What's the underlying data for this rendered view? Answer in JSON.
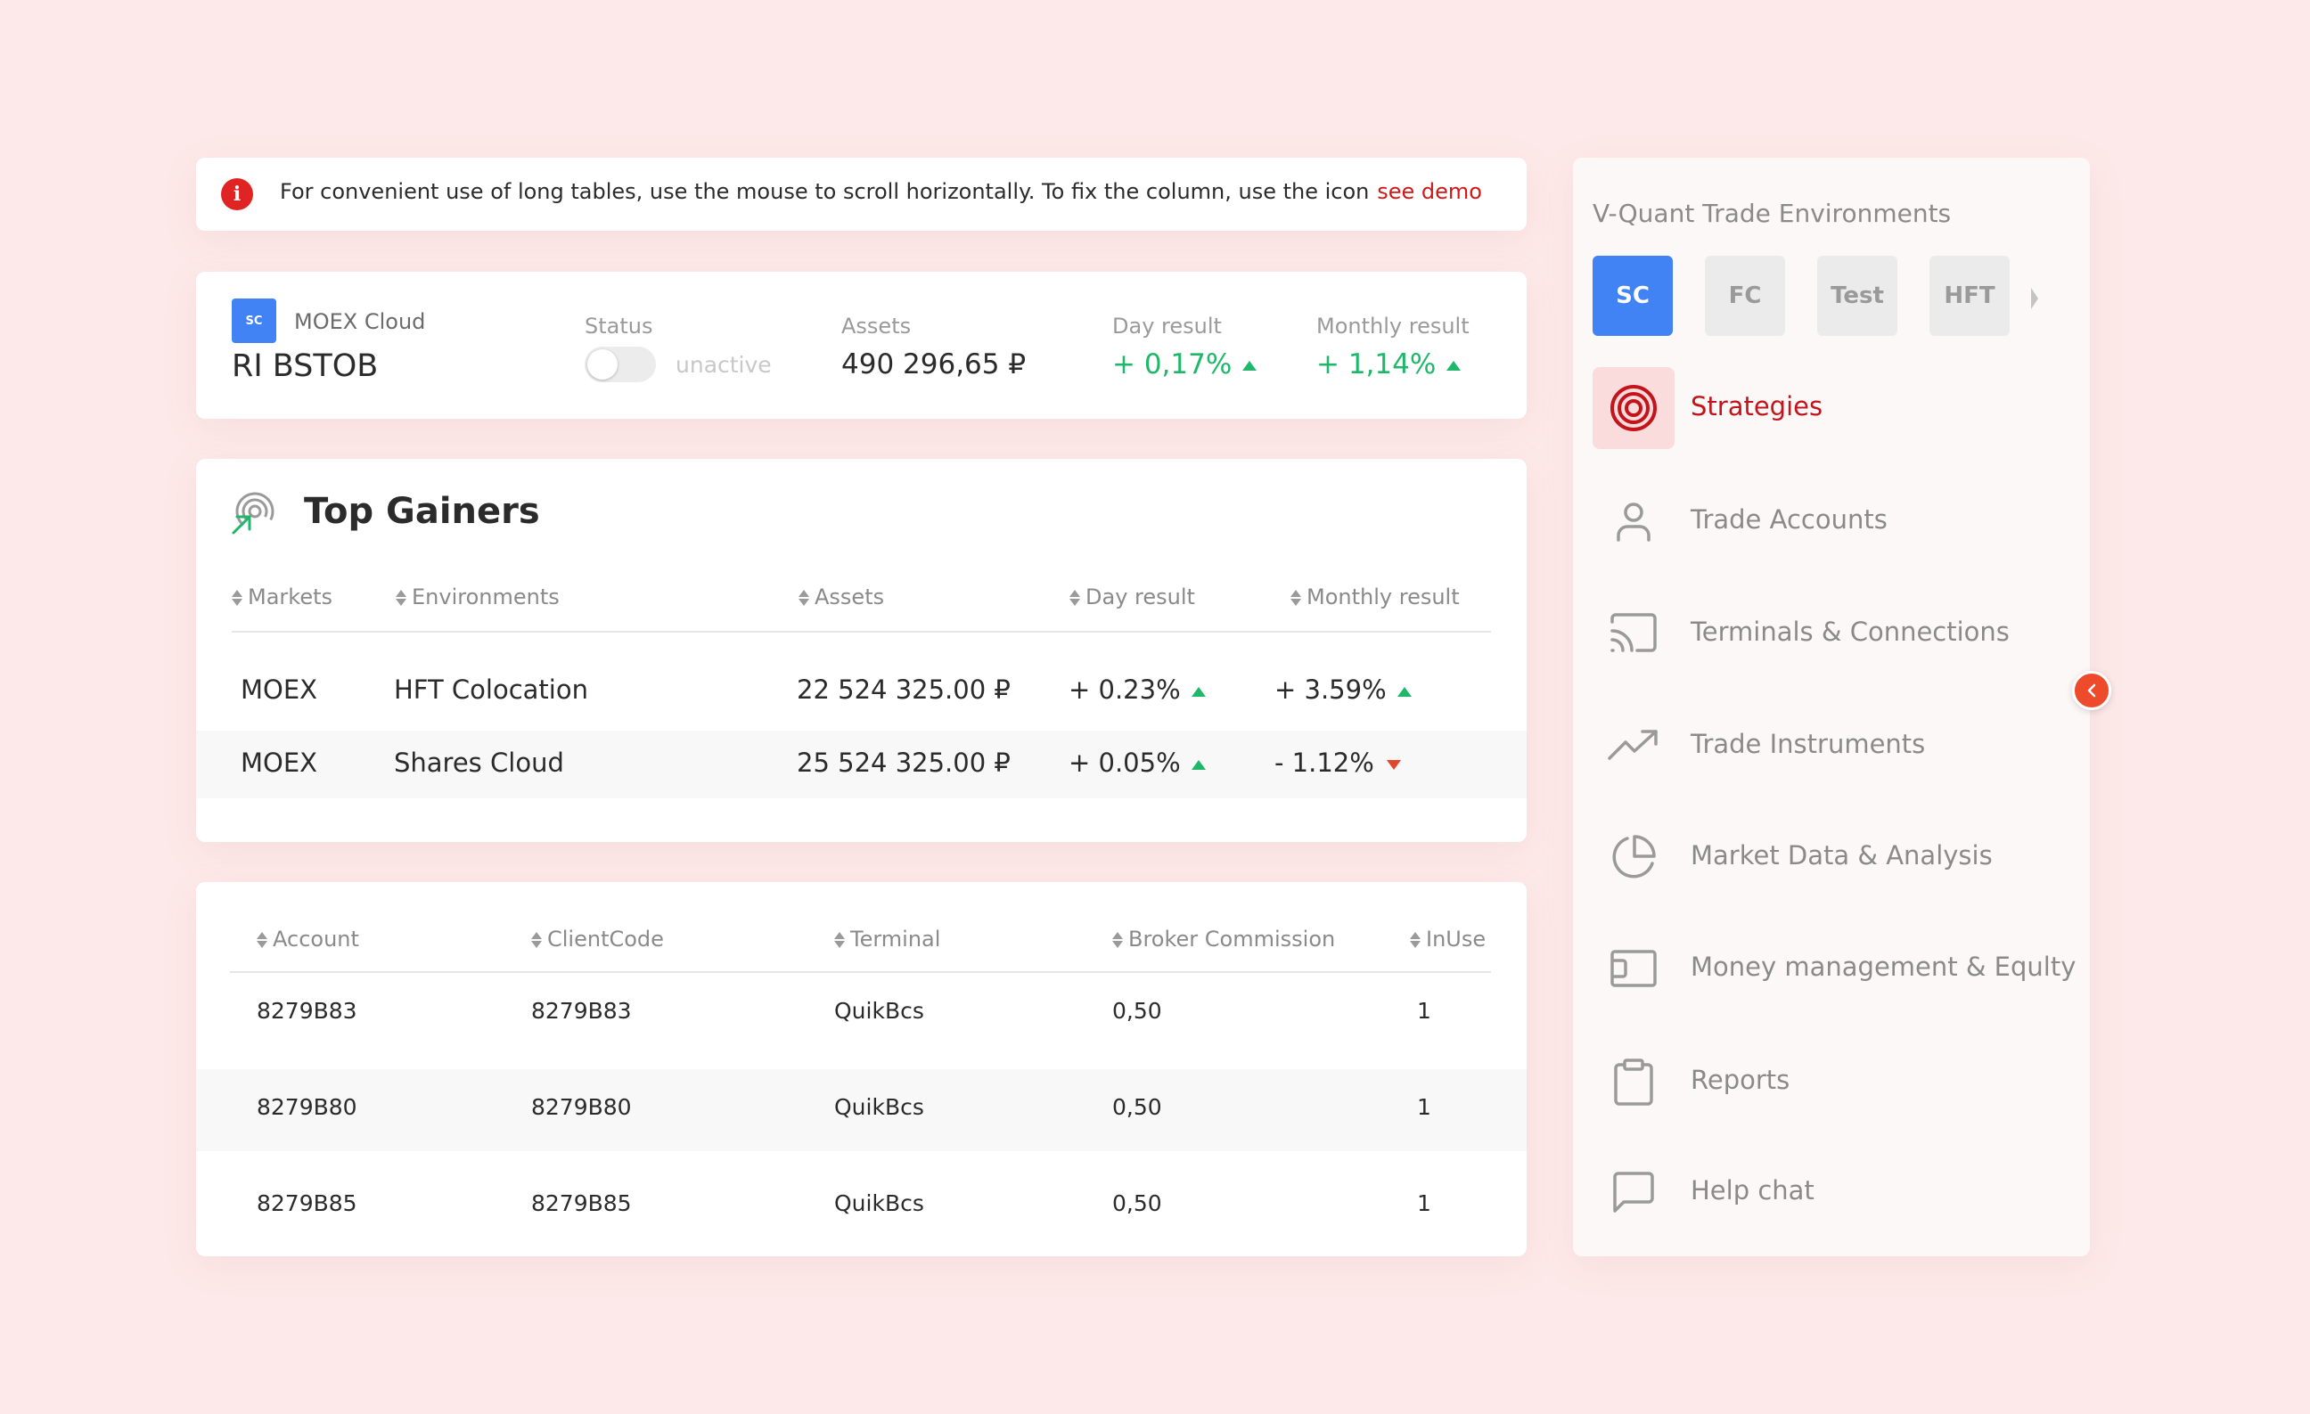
{
  "notice": {
    "message": "For convenient use of long tables, use the mouse to scroll horizontally. To fix the column, use the icon",
    "link": "see demo"
  },
  "summary": {
    "badge": "SC",
    "cloud": "MOEX Cloud",
    "name": "RI BSTOB",
    "status_label": "Status",
    "status_value": "unactive",
    "assets_label": "Assets",
    "assets_value": "490 296,65 ₽",
    "day_label": "Day result",
    "day_value": "+ 0,17%",
    "month_label": "Monthly result",
    "month_value": "+ 1,14%"
  },
  "top_gainers": {
    "title": "Top Gainers",
    "headers": [
      "Markets",
      "Environments",
      "Assets",
      "Day result",
      "Monthly result"
    ],
    "rows": [
      {
        "market": "MOEX",
        "environment": "HFT Colocation",
        "assets": "22 524 325.00 ₽",
        "day": "+ 0.23%",
        "month": "+ 3.59%"
      },
      {
        "market": "MOEX",
        "environment": "Shares Cloud",
        "assets": "25 524 325.00 ₽",
        "day": "+ 0.05%",
        "month": "- 1.12%"
      }
    ]
  },
  "accounts": {
    "headers": [
      "Account",
      "ClientCode",
      "Terminal",
      "Broker Commission",
      "InUse"
    ],
    "rows": [
      {
        "account": "8279B83",
        "client": "8279B83",
        "terminal": "QuikBcs",
        "commission": "0,50",
        "inuse": "1"
      },
      {
        "account": "8279B80",
        "client": "8279B80",
        "terminal": "QuikBcs",
        "commission": "0,50",
        "inuse": "1"
      },
      {
        "account": "8279B85",
        "client": "8279B85",
        "terminal": "QuikBcs",
        "commission": "0,50",
        "inuse": "1"
      }
    ]
  },
  "sidebar": {
    "title": "V-Quant Trade Environments",
    "envs": [
      "SC",
      "FC",
      "Test",
      "HFT"
    ],
    "items": [
      {
        "label": "Strategies",
        "icon": "target-icon"
      },
      {
        "label": "Trade Accounts",
        "icon": "user-icon"
      },
      {
        "label": "Terminals & Connections",
        "icon": "cast-icon"
      },
      {
        "label": "Trade Instruments",
        "icon": "trending-up-icon"
      },
      {
        "label": "Market Data & Analysis",
        "icon": "pie-chart-icon"
      },
      {
        "label": "Money management & Equlty",
        "icon": "wallet-icon"
      },
      {
        "label": "Reports",
        "icon": "clipboard-icon"
      },
      {
        "label": "Help chat",
        "icon": "chat-icon"
      }
    ]
  },
  "colors": {
    "accent_red": "#c4141b",
    "positive": "#1fb86a",
    "negative": "#e2462c",
    "env_active": "#4183f5",
    "background": "#fde9e9"
  }
}
